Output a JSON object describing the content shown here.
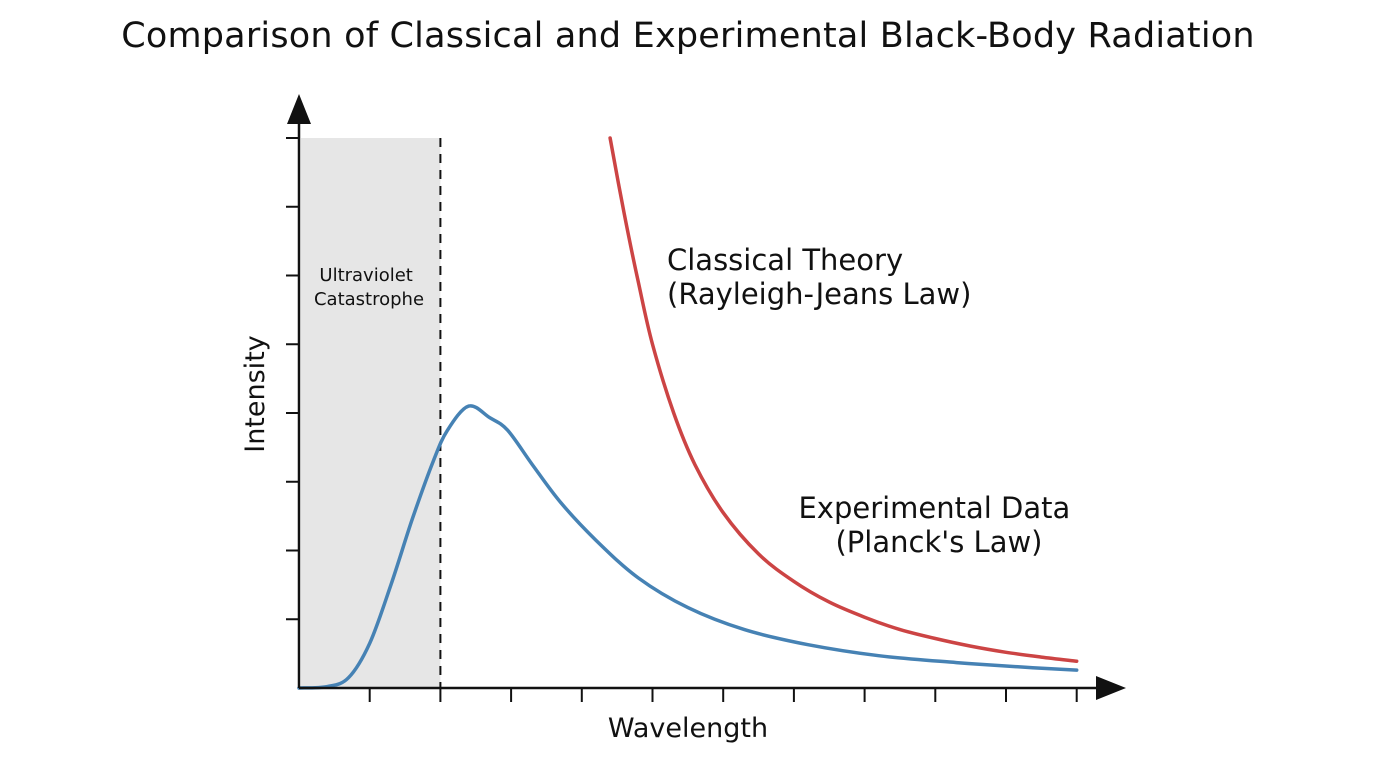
{
  "chart_data": {
    "type": "line",
    "title": "Comparison of Classical and Experimental Black-Body Radiation",
    "xlabel": "Wavelength",
    "ylabel": "Intensity",
    "x_ticks": 11,
    "y_ticks": 8,
    "xlim": [
      0,
      11
    ],
    "ylim": [
      0,
      8
    ],
    "grid": false,
    "region": {
      "label_lines": [
        "Ultraviolet",
        "Catastrophe"
      ],
      "x_end": 2,
      "color": "#e6e6e6"
    },
    "series": [
      {
        "name_lines": [
          "Classical Theory",
          "(Rayleigh-Jeans Law)"
        ],
        "color": "#cc4444",
        "x": [
          4.4,
          4.6,
          4.8,
          5.0,
          5.3,
          5.6,
          6.0,
          6.5,
          7.0,
          7.5,
          8.0,
          8.5,
          9.0,
          9.5,
          10.0,
          10.5,
          11.0
        ],
        "y": [
          8.0,
          6.9,
          5.9,
          5.0,
          4.0,
          3.25,
          2.55,
          1.95,
          1.55,
          1.25,
          1.03,
          0.85,
          0.72,
          0.61,
          0.52,
          0.45,
          0.39
        ]
      },
      {
        "name_lines": [
          "Experimental Data",
          "(Planck's Law)"
        ],
        "color": "#4682b4",
        "x": [
          0,
          0.4,
          0.7,
          1.0,
          1.3,
          1.6,
          1.9,
          2.1,
          2.4,
          2.7,
          2.95,
          3.3,
          3.7,
          4.2,
          4.8,
          5.5,
          6.3,
          7.2,
          8.2,
          9.3,
          10.3,
          11.0
        ],
        "y": [
          0.0,
          0.02,
          0.15,
          0.65,
          1.5,
          2.45,
          3.3,
          3.75,
          4.1,
          3.93,
          3.75,
          3.25,
          2.7,
          2.15,
          1.6,
          1.17,
          0.85,
          0.63,
          0.47,
          0.37,
          0.3,
          0.26
        ]
      }
    ]
  }
}
